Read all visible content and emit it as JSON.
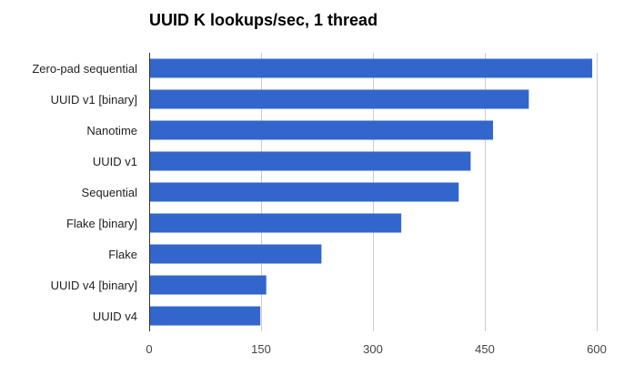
{
  "chart_data": {
    "type": "bar",
    "orientation": "horizontal",
    "title": "UUID K lookups/sec, 1 thread",
    "xlabel": "",
    "ylabel": "",
    "categories": [
      "Zero-pad sequential",
      "UUID v1 [binary]",
      "Nanotime",
      "UUID v1",
      "Sequential",
      "Flake [binary]",
      "Flake",
      "UUID v4 [binary]",
      "UUID v4"
    ],
    "values": [
      594,
      509,
      461,
      431,
      415,
      338,
      231,
      157,
      149
    ],
    "xlim": [
      0,
      600
    ],
    "xticks": [
      "0",
      "150",
      "300",
      "450",
      "600"
    ],
    "grid": true,
    "legend": "none",
    "bar_color": "#3366cc",
    "grid_color": "#cccccc",
    "baseline_color": "#333333"
  }
}
